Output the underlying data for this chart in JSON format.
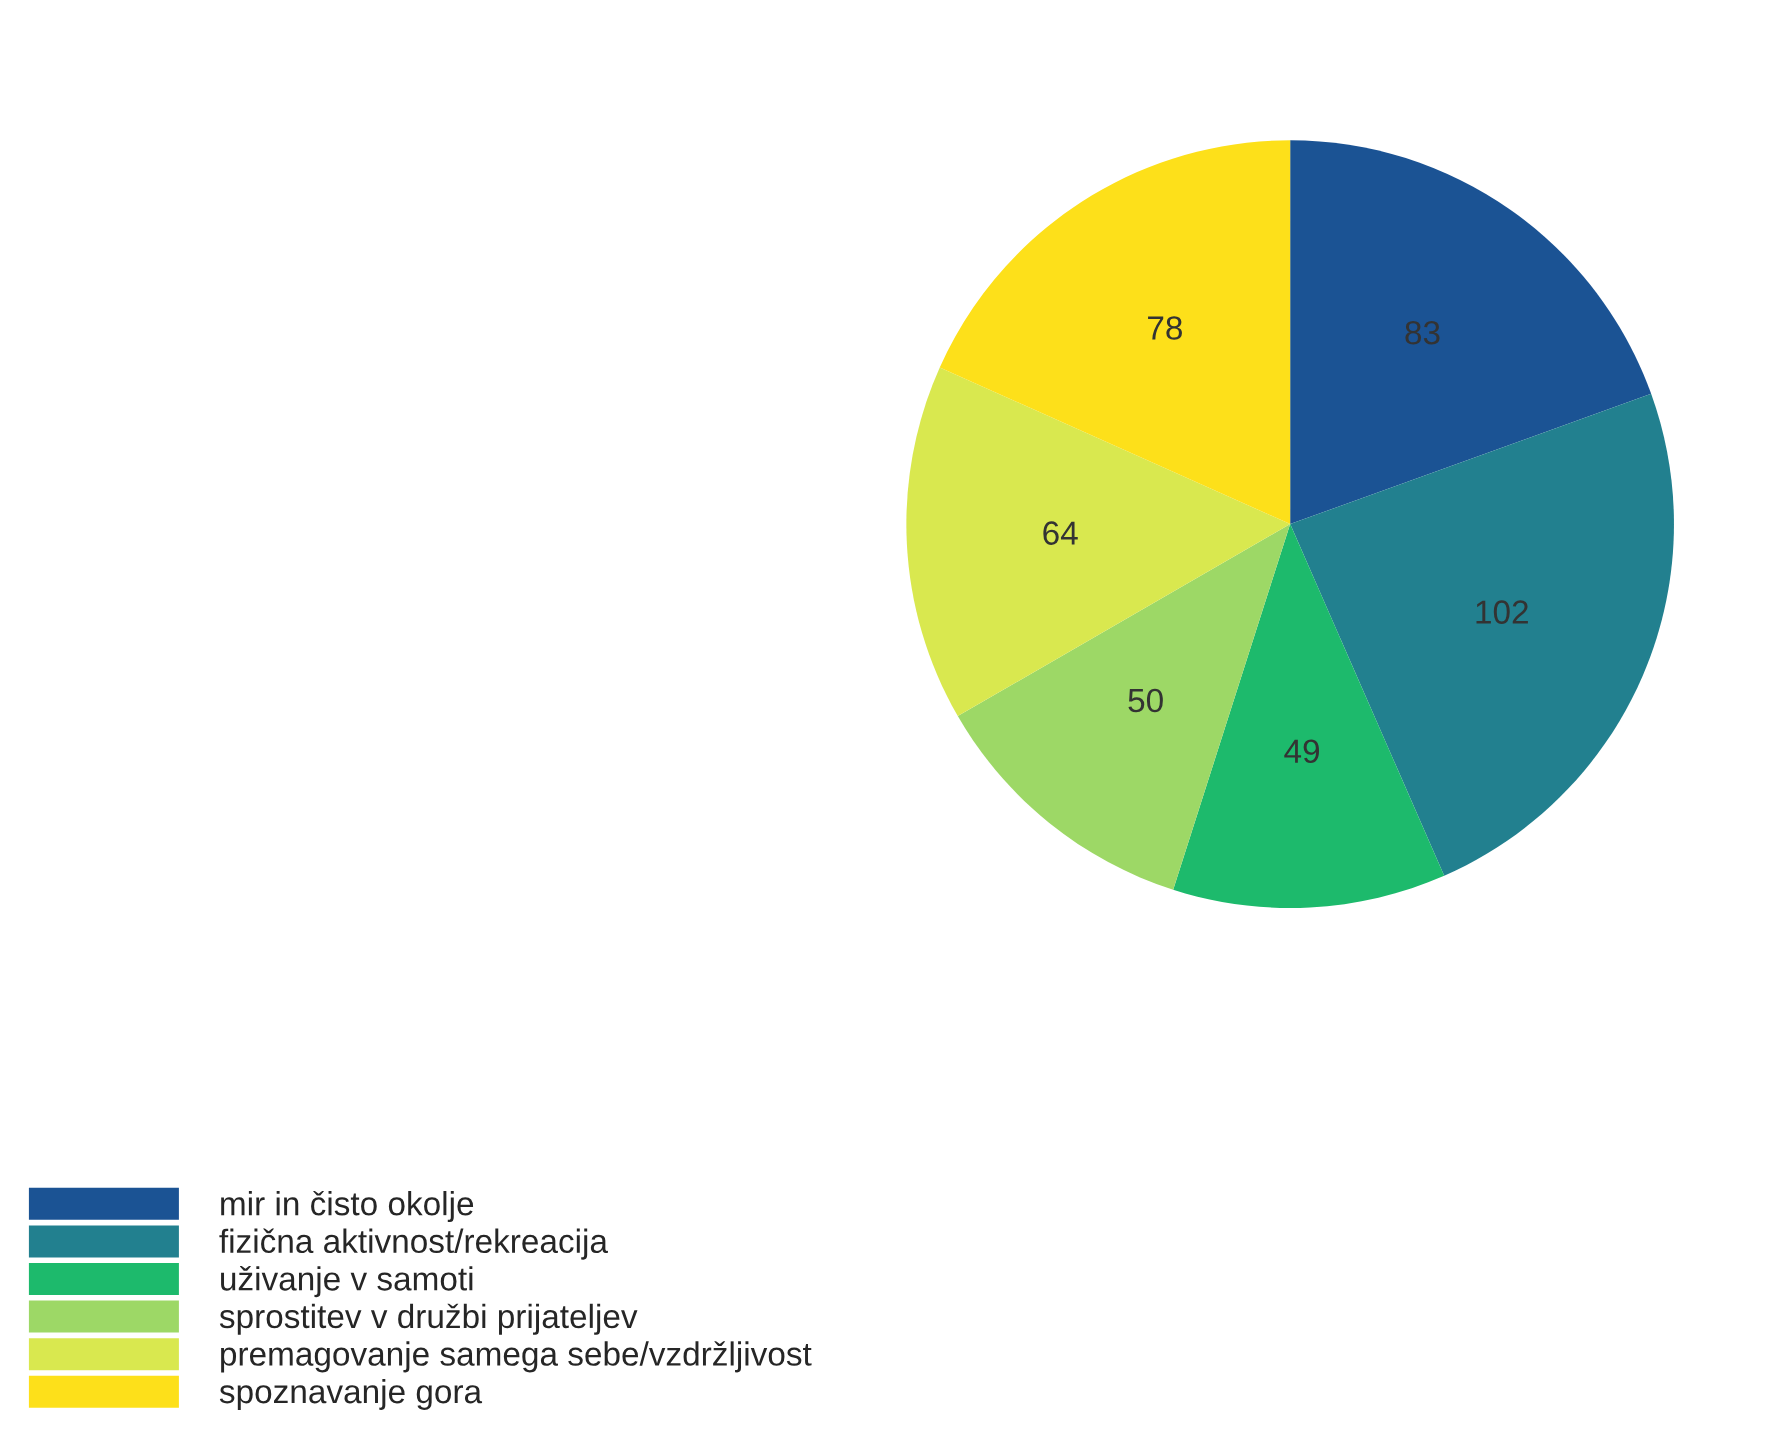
{
  "chart_data": {
    "type": "pie",
    "categories": [
      "mir in čisto okolje",
      "fizična aktivnost/rekreacija",
      "uživanje v samoti",
      "sprostitev v družbi prijateljev",
      "premagovanje samega sebe/vzdržljivost",
      "spoznavanje gora"
    ],
    "values": [
      83,
      102,
      49,
      50,
      64,
      78
    ],
    "colors": [
      "#1b5394",
      "#22808f",
      "#1dba6c",
      "#9dd866",
      "#d9e84f",
      "#fde01a"
    ],
    "data_labels": true,
    "legend": "bottom left"
  }
}
